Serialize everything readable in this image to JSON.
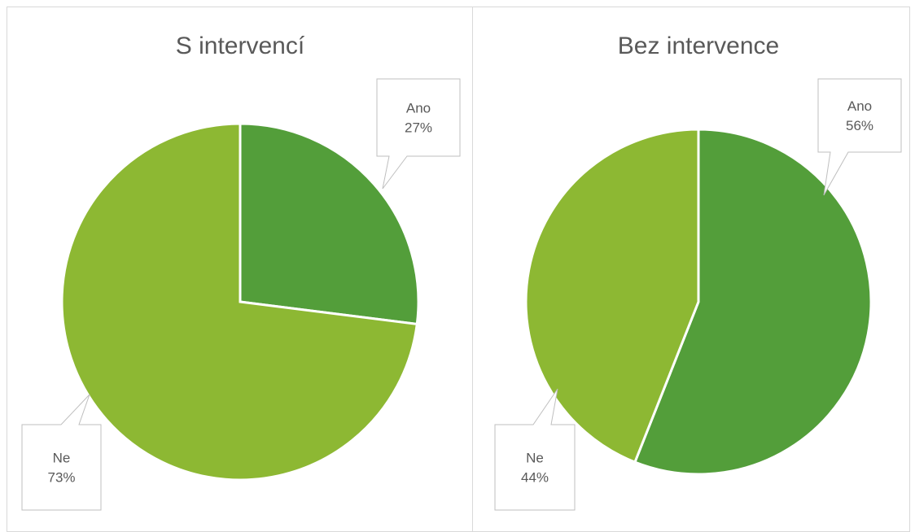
{
  "chart_data": [
    {
      "type": "pie",
      "title": "S intervencí",
      "categories": [
        "Ano",
        "Ne"
      ],
      "values": [
        27,
        73
      ],
      "value_labels": [
        "27%",
        "73%"
      ],
      "colors": [
        "#539e3a",
        "#8db833"
      ]
    },
    {
      "type": "pie",
      "title": "Bez intervence",
      "categories": [
        "Ano",
        "Ne"
      ],
      "values": [
        56,
        44
      ],
      "value_labels": [
        "56%",
        "44%"
      ],
      "colors": [
        "#539e3a",
        "#8db833"
      ]
    }
  ]
}
